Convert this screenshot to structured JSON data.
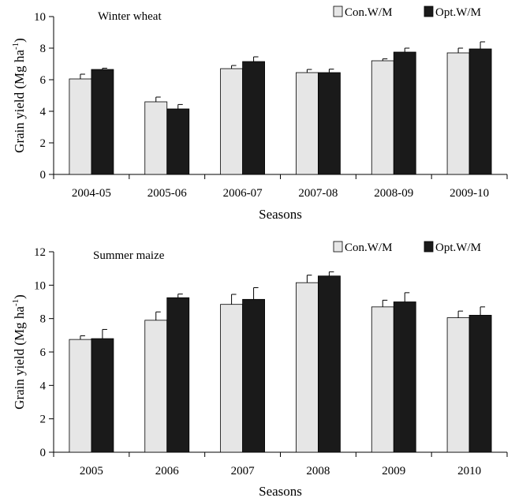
{
  "chart_data": [
    {
      "type": "bar",
      "title": "Winter wheat",
      "xlabel": "Seasons",
      "ylabel": "Grain yield (Mg ha-1)",
      "ylabel_main": "Grain yield (Mg ha",
      "ylabel_sup": "-1",
      "ylabel_close": ")",
      "ylim": [
        0,
        10
      ],
      "yticks": [
        0,
        2,
        4,
        6,
        8,
        10
      ],
      "categories": [
        "2004-05",
        "2005-06",
        "2006-07",
        "2007-08",
        "2008-09",
        "2009-10"
      ],
      "legend_position": "top-right",
      "series": [
        {
          "name": "Con.W/M",
          "color": "#e6e6e6",
          "values": [
            6.05,
            4.6,
            6.7,
            6.45,
            7.2,
            7.7
          ],
          "errors": [
            0.3,
            0.3,
            0.2,
            0.2,
            0.12,
            0.3
          ]
        },
        {
          "name": "Opt.W/M",
          "color": "#1a1a1a",
          "values": [
            6.65,
            4.15,
            7.15,
            6.45,
            7.75,
            7.95
          ],
          "errors": [
            0.08,
            0.28,
            0.3,
            0.22,
            0.25,
            0.45
          ]
        }
      ]
    },
    {
      "type": "bar",
      "title": "Summer maize",
      "xlabel": "Seasons",
      "ylabel": "Grain yield (Mg ha-1)",
      "ylabel_main": "Grain yield (Mg ha",
      "ylabel_sup": "-1",
      "ylabel_close": ")",
      "ylim": [
        0,
        12
      ],
      "yticks": [
        0,
        2,
        4,
        6,
        8,
        10,
        12
      ],
      "categories": [
        "2005",
        "2006",
        "2007",
        "2008",
        "2009",
        "2010"
      ],
      "legend_position": "top-right",
      "series": [
        {
          "name": "Con.W/M",
          "color": "#e6e6e6",
          "values": [
            6.75,
            7.9,
            8.85,
            10.15,
            8.7,
            8.05
          ],
          "errors": [
            0.22,
            0.5,
            0.6,
            0.45,
            0.4,
            0.4
          ]
        },
        {
          "name": "Opt.W/M",
          "color": "#1a1a1a",
          "values": [
            6.8,
            9.25,
            9.15,
            10.55,
            9.0,
            8.2
          ],
          "errors": [
            0.55,
            0.22,
            0.7,
            0.25,
            0.55,
            0.5
          ]
        }
      ]
    }
  ]
}
